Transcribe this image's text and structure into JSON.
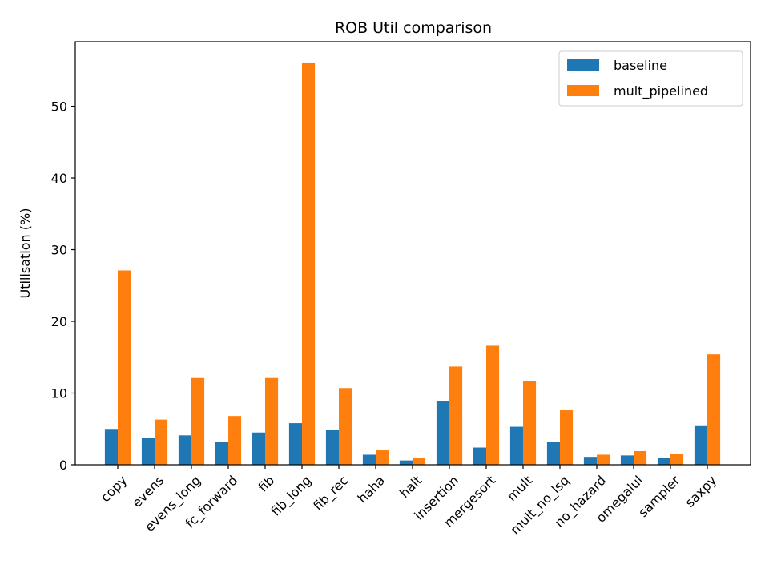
{
  "chart_data": {
    "type": "bar",
    "title": "ROB Util comparison",
    "xlabel": "",
    "ylabel": "Utilisation (%)",
    "ylim": [
      0,
      59
    ],
    "yticks": [
      0,
      10,
      20,
      30,
      40,
      50
    ],
    "categories": [
      "copy",
      "evens",
      "evens_long",
      "fc_forward",
      "fib",
      "fib_long",
      "fib_rec",
      "haha",
      "halt",
      "insertion",
      "mergesort",
      "mult",
      "mult_no_lsq",
      "no_hazard",
      "omegalul",
      "sampler",
      "saxpy"
    ],
    "series": [
      {
        "name": "baseline",
        "color": "#1f77b4",
        "values": [
          5.0,
          3.7,
          4.1,
          3.2,
          4.5,
          5.8,
          4.9,
          1.4,
          0.6,
          8.9,
          2.4,
          5.3,
          3.2,
          1.1,
          1.3,
          1.0,
          5.5
        ]
      },
      {
        "name": "mult_pipelined",
        "color": "#ff7f0e",
        "values": [
          27.1,
          6.3,
          12.1,
          6.8,
          12.1,
          56.1,
          10.7,
          2.1,
          0.9,
          13.7,
          16.6,
          11.7,
          7.7,
          1.4,
          1.9,
          1.5,
          15.4
        ]
      }
    ],
    "grid": false,
    "legend_position": "top-right"
  }
}
